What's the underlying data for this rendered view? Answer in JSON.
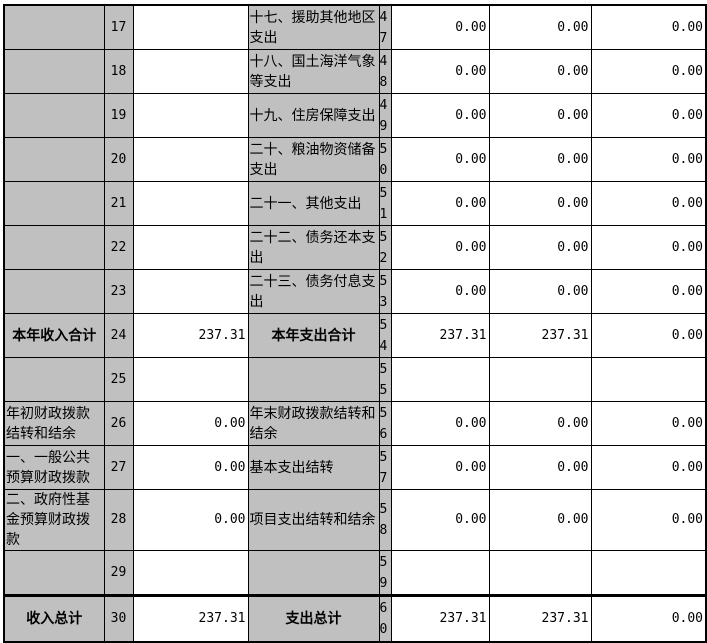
{
  "rows": [
    {
      "l": "",
      "n": "17",
      "a": "",
      "r": "十七、援助其他地区支出",
      "rn": "47",
      "v1": "0.00",
      "v2": "0.00",
      "v3": "0.00"
    },
    {
      "l": "",
      "n": "18",
      "a": "",
      "r": "十八、国土海洋气象等支出",
      "rn": "48",
      "v1": "0.00",
      "v2": "0.00",
      "v3": "0.00"
    },
    {
      "l": "",
      "n": "19",
      "a": "",
      "r": "十九、住房保障支出",
      "rn": "49",
      "v1": "0.00",
      "v2": "0.00",
      "v3": "0.00"
    },
    {
      "l": "",
      "n": "20",
      "a": "",
      "r": "二十、粮油物资储备支出",
      "rn": "50",
      "v1": "0.00",
      "v2": "0.00",
      "v3": "0.00"
    },
    {
      "l": "",
      "n": "21",
      "a": "",
      "r": "二十一、其他支出",
      "rn": "51",
      "v1": "0.00",
      "v2": "0.00",
      "v3": "0.00"
    },
    {
      "l": "",
      "n": "22",
      "a": "",
      "r": "二十二、债务还本支出",
      "rn": "52",
      "v1": "0.00",
      "v2": "0.00",
      "v3": "0.00"
    },
    {
      "l": "",
      "n": "23",
      "a": "",
      "r": "二十三、债务付息支出",
      "rn": "53",
      "v1": "0.00",
      "v2": "0.00",
      "v3": "0.00"
    },
    {
      "l": "本年收入合计",
      "n": "24",
      "a": "237.31",
      "r": "本年支出合计",
      "rn": "54",
      "v1": "237.31",
      "v2": "237.31",
      "v3": "0.00",
      "bold": true
    },
    {
      "l": "",
      "n": "25",
      "a": "",
      "r": "",
      "rn": "55",
      "v1": "",
      "v2": "",
      "v3": ""
    },
    {
      "l": "年初财政拨款结转和结余",
      "n": "26",
      "a": "0.00",
      "r": "年末财政拨款结转和结余",
      "rn": "56",
      "v1": "0.00",
      "v2": "0.00",
      "v3": "0.00"
    },
    {
      "l": "一、一般公共预算财政拨款",
      "n": "27",
      "a": "0.00",
      "r": "基本支出结转",
      "rn": "57",
      "v1": "0.00",
      "v2": "0.00",
      "v3": "0.00"
    },
    {
      "l": "二、政府性基金预算财政拨款",
      "n": "28",
      "a": "0.00",
      "r": "项目支出结转和结余",
      "rn": "58",
      "v1": "0.00",
      "v2": "0.00",
      "v3": "0.00"
    },
    {
      "l": "",
      "n": "29",
      "a": "",
      "r": "",
      "rn": "59",
      "v1": "",
      "v2": "",
      "v3": ""
    },
    {
      "l": "收入总计",
      "n": "30",
      "a": "237.31",
      "r": "支出总计",
      "rn": "60",
      "v1": "237.31",
      "v2": "237.31",
      "v3": "0.00",
      "bold": true,
      "total": true
    }
  ],
  "colors": {
    "label_bg": "#c0c0c0",
    "value_bg": "#ffffff",
    "border": "#000000"
  }
}
